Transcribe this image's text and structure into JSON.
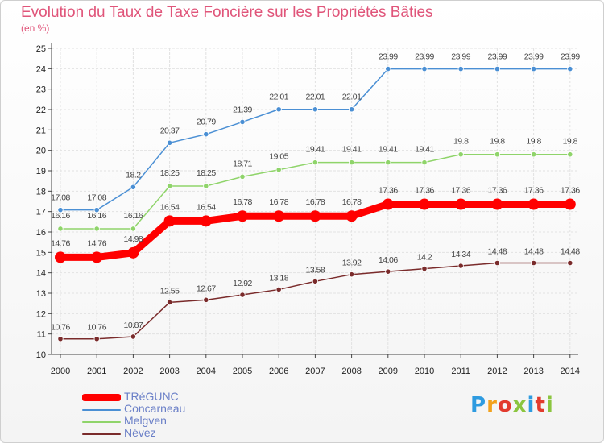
{
  "header": {
    "title": "Evolution du Taux de Taxe Foncière sur les Propriétés Bâties",
    "unit": "(en %)"
  },
  "logo": {
    "text": "Proxiti",
    "colors": [
      "#2e9be0",
      "#f2a11c",
      "#e23b2e",
      "#8bc53f",
      "#2e9be0",
      "#e23b2e",
      "#8bc53f"
    ]
  },
  "chart_data": {
    "type": "line",
    "title": "Evolution du Taux de Taxe Foncière sur les Propriétés Bâties",
    "ylabel": "(en %)",
    "xlabel": "",
    "x": [
      2000,
      2001,
      2002,
      2003,
      2004,
      2005,
      2006,
      2007,
      2008,
      2009,
      2010,
      2011,
      2012,
      2013,
      2014
    ],
    "ylim": [
      10,
      25
    ],
    "yticks": [
      10,
      11,
      12,
      13,
      14,
      15,
      16,
      17,
      18,
      19,
      20,
      21,
      22,
      23,
      24,
      25
    ],
    "grid": true,
    "legend": "bottom-left",
    "series": [
      {
        "name": "Concarneau",
        "color": "#4a8fd4",
        "emphasis": false,
        "values": [
          17.08,
          17.08,
          18.2,
          20.37,
          20.79,
          21.39,
          22.01,
          22.01,
          22.01,
          23.99,
          23.99,
          23.99,
          23.99,
          23.99,
          23.99
        ],
        "labels": [
          "17.08",
          "17.08",
          "18.2",
          "20.37",
          "20.79",
          "21.39",
          "22.01",
          "22.01",
          "22.01",
          "23.99",
          "23.99",
          "23.99",
          "23.99",
          "23.99",
          "23.99"
        ]
      },
      {
        "name": "Melgven",
        "color": "#8fd46a",
        "emphasis": false,
        "values": [
          16.16,
          16.16,
          16.16,
          18.25,
          18.25,
          18.71,
          19.05,
          19.41,
          19.41,
          19.41,
          19.41,
          19.8,
          19.8,
          19.8,
          19.8
        ],
        "labels": [
          "16.16",
          "16.16",
          "16.16",
          "18.25",
          "18.25",
          "18.71",
          "19.05",
          "19.41",
          "19.41",
          "19.41",
          "19.41",
          "19.8",
          "19.8",
          "19.8",
          "19.8"
        ]
      },
      {
        "name": "Névez",
        "color": "#7a2b2b",
        "emphasis": false,
        "values": [
          10.76,
          10.76,
          10.87,
          12.55,
          12.67,
          12.92,
          13.18,
          13.58,
          13.92,
          14.06,
          14.2,
          14.34,
          14.48,
          14.48,
          14.48
        ],
        "labels": [
          "10.76",
          "10.76",
          "10.87",
          "12.55",
          "12.67",
          "12.92",
          "13.18",
          "13.58",
          "13.92",
          "14.06",
          "14.2",
          "14.34",
          "14.48",
          "14.48",
          "14.48"
        ]
      },
      {
        "name": "TRéGUNC",
        "color": "#ff0000",
        "emphasis": true,
        "values": [
          14.76,
          14.76,
          14.98,
          16.54,
          16.54,
          16.78,
          16.78,
          16.78,
          16.78,
          17.36,
          17.36,
          17.36,
          17.36,
          17.36,
          17.36
        ],
        "labels": [
          "14.76",
          "14.76",
          "14.98",
          "16.54",
          "16.54",
          "16.78",
          "16.78",
          "16.78",
          "16.78",
          "17.36",
          "17.36",
          "17.36",
          "17.36",
          "17.36",
          "17.36"
        ]
      }
    ],
    "legend_order": [
      "TRéGUNC",
      "Concarneau",
      "Melgven",
      "Névez"
    ]
  }
}
